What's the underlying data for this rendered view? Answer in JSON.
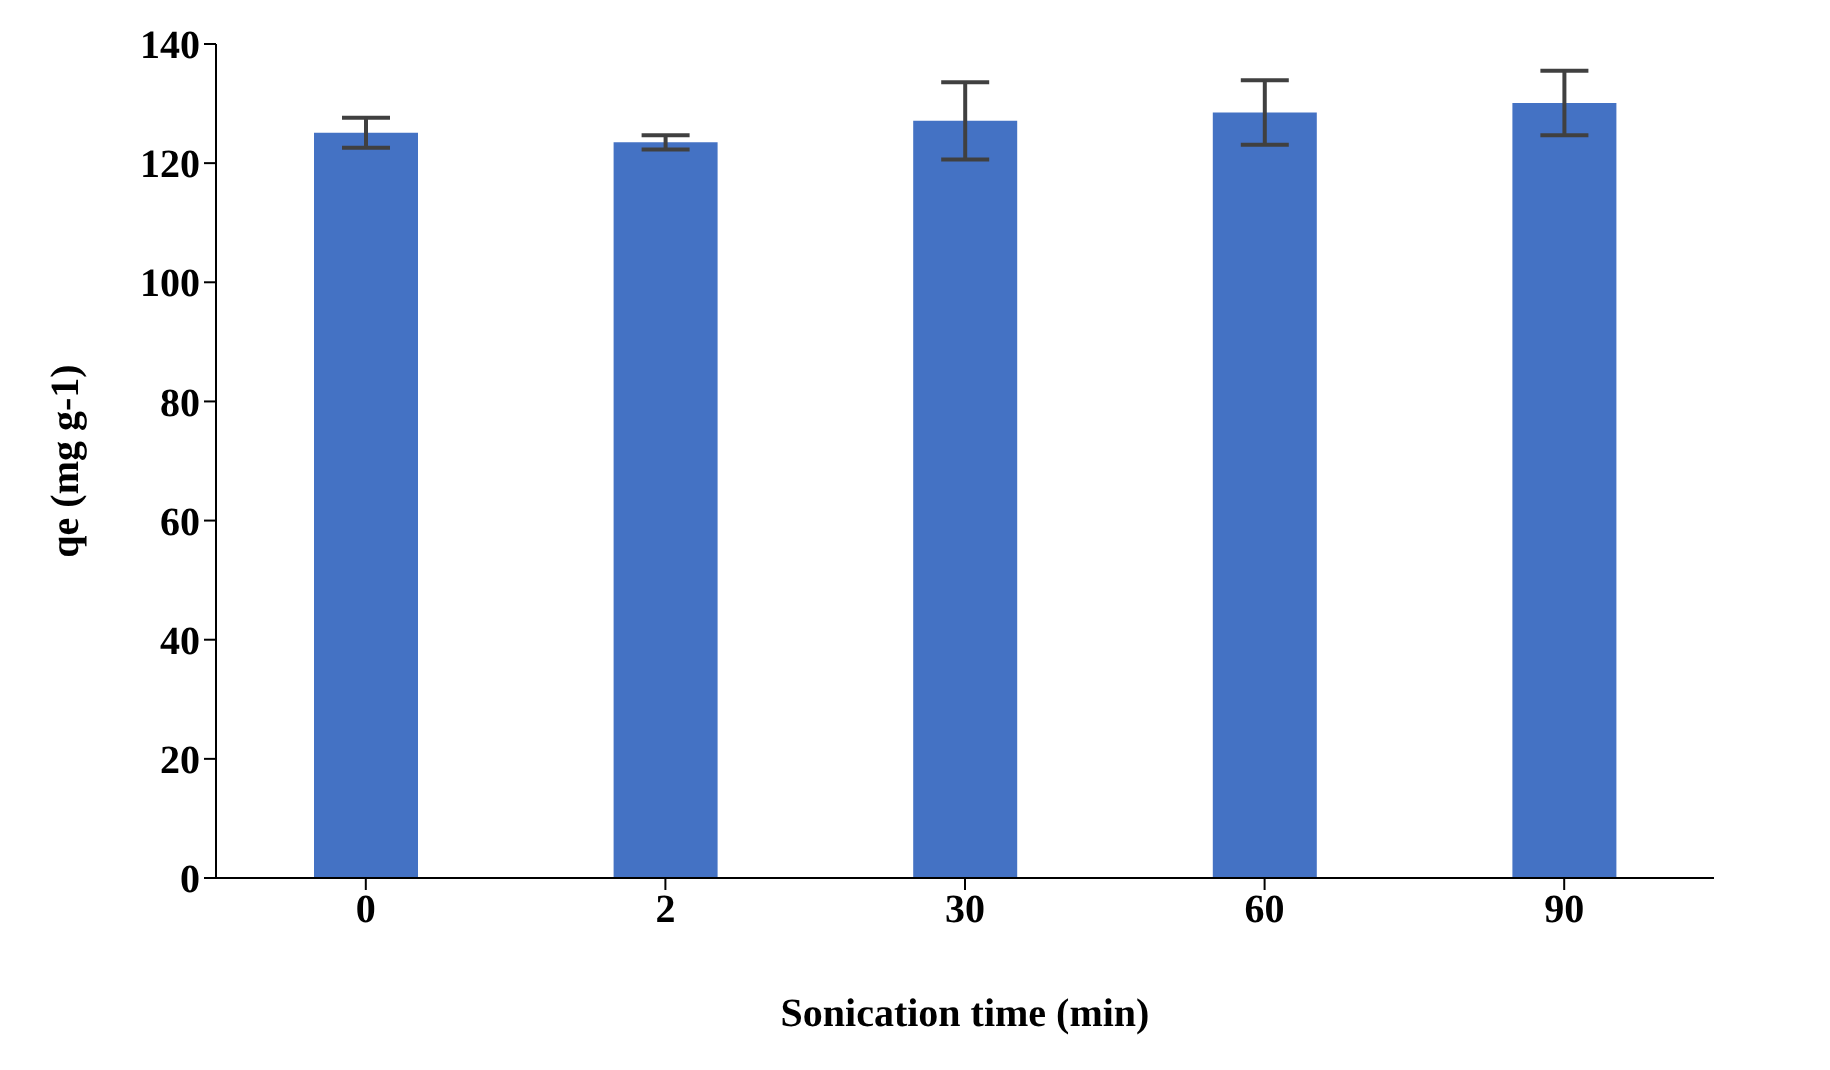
{
  "chart_data": {
    "type": "bar",
    "xlabel": "Sonication time (min)",
    "ylabel": "qe (mg g-1)",
    "categories": [
      "0",
      "2",
      "30",
      "60",
      "90"
    ],
    "values": [
      125.1,
      123.5,
      127.1,
      128.5,
      130.1
    ],
    "errors": [
      2.5,
      1.2,
      6.5,
      5.4,
      5.4
    ],
    "color": "#4472c4",
    "ylim": [
      0,
      140
    ],
    "yticks": [
      0,
      20,
      40,
      60,
      80,
      100,
      120,
      140
    ],
    "grid": false
  }
}
